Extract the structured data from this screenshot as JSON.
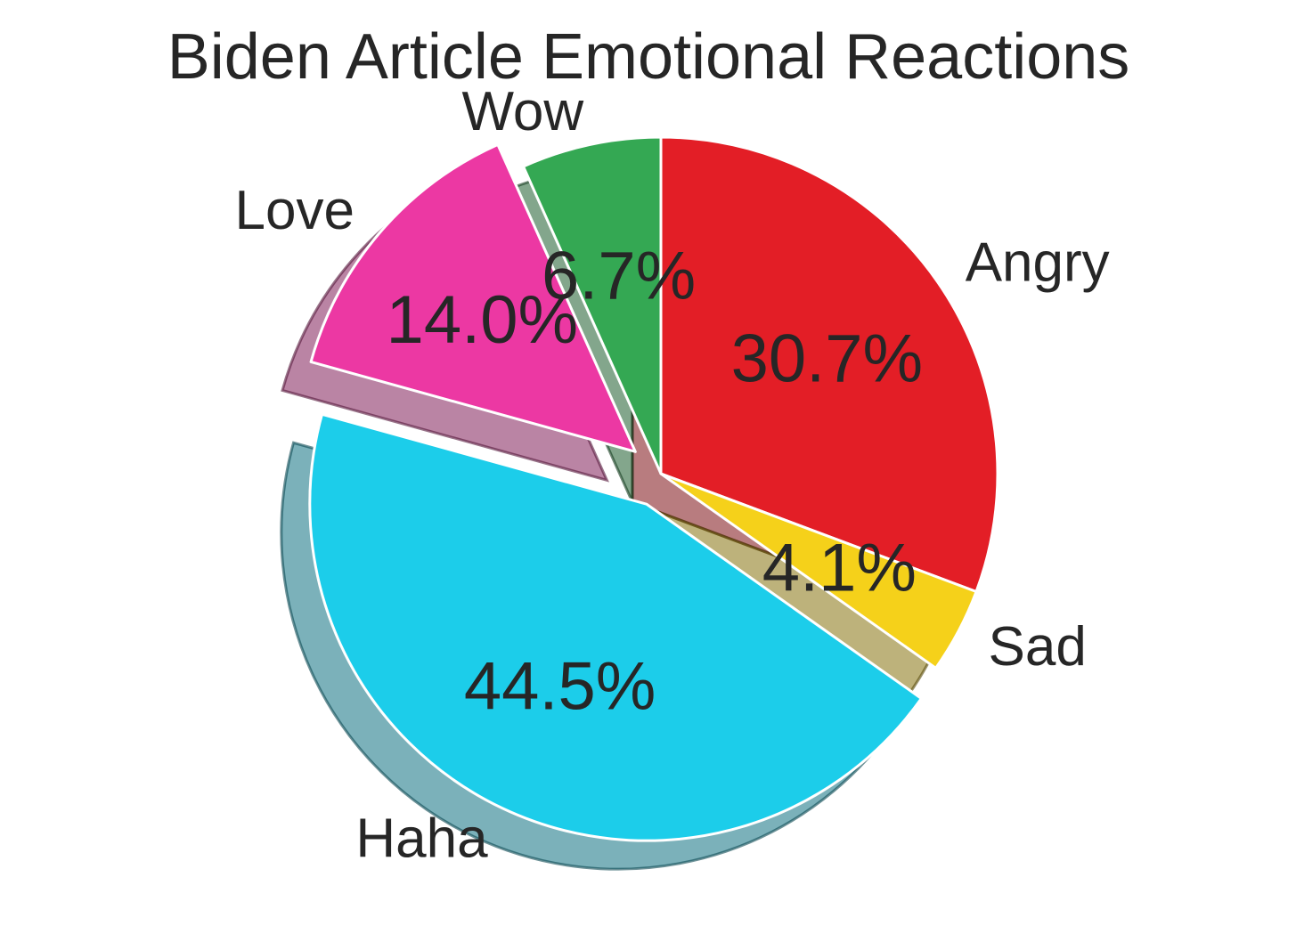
{
  "chart_data": {
    "type": "pie",
    "title": "Biden Article Emotional Reactions",
    "slices": [
      {
        "label": "Angry",
        "value": 30.7,
        "pct_label": "30.7%",
        "color": "#e31e26"
      },
      {
        "label": "Sad",
        "value": 4.1,
        "pct_label": "4.1%",
        "color": "#f5d11a"
      },
      {
        "label": "Haha",
        "value": 44.5,
        "pct_label": "44.5%",
        "color": "#1ccdea",
        "explode": 0.1
      },
      {
        "label": "Love",
        "value": 14.0,
        "pct_label": "14.0%",
        "color": "#ec38a3",
        "explode": 0.1
      },
      {
        "label": "Wow",
        "value": 6.7,
        "pct_label": "6.7%",
        "color": "#34a853"
      }
    ],
    "start_angle": 90,
    "direction": "clockwise",
    "shadow": true,
    "legend": "none"
  }
}
